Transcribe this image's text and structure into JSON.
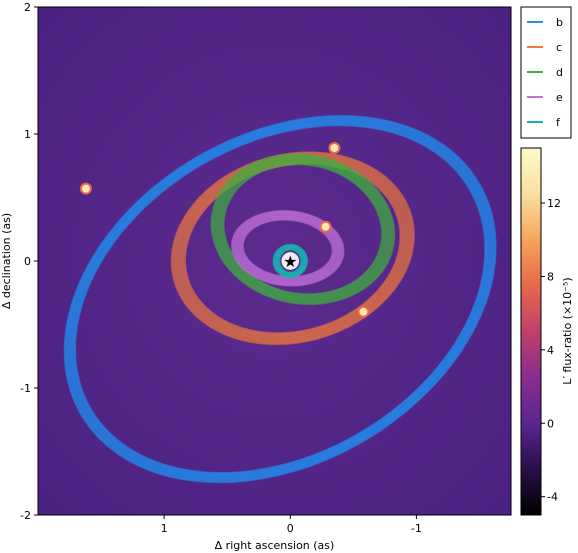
{
  "chart_data": {
    "type": "scatter",
    "xlabel": "Δ right ascension (as)",
    "ylabel": "Δ declination (as)",
    "xlim": [
      2.0,
      -1.75
    ],
    "ylim": [
      -2,
      2
    ],
    "xticks": [
      {
        "v": 1,
        "label": "1"
      },
      {
        "v": 0,
        "label": "0"
      },
      {
        "v": -1,
        "label": "-1"
      }
    ],
    "yticks": [
      {
        "v": 2,
        "label": "2"
      },
      {
        "v": 1,
        "label": "1"
      },
      {
        "v": 0,
        "label": "0"
      },
      {
        "v": -1,
        "label": "-1"
      },
      {
        "v": -2,
        "label": "-2"
      }
    ],
    "legend_position": "top-right, outside plot",
    "legend": [
      {
        "name": "b",
        "color": "#1f8ff0"
      },
      {
        "name": "c",
        "color": "#f07a3a"
      },
      {
        "name": "d",
        "color": "#3fae3f"
      },
      {
        "name": "e",
        "color": "#c070d8"
      },
      {
        "name": "f",
        "color": "#17b3b0"
      }
    ],
    "orbits": [
      {
        "name": "b",
        "a": 1.78,
        "b": 1.27,
        "x0": 0.08,
        "y0": -0.3,
        "rot": -30,
        "width": 0.09,
        "color": "#1f8ff0"
      },
      {
        "name": "c",
        "a": 0.92,
        "b": 0.7,
        "x0": -0.02,
        "y0": 0.1,
        "rot": -15,
        "width": 0.11,
        "color": "#f07a3a"
      },
      {
        "name": "d",
        "a": 0.68,
        "b": 0.55,
        "x0": -0.1,
        "y0": 0.25,
        "rot": 10,
        "width": 0.1,
        "color": "#3fae3f"
      },
      {
        "name": "e",
        "a": 0.4,
        "b": 0.26,
        "x0": 0.02,
        "y0": 0.1,
        "rot": 5,
        "width": 0.09,
        "color": "#c070d8"
      },
      {
        "name": "f",
        "a": 0.11,
        "b": 0.11,
        "x0": 0.0,
        "y0": 0.0,
        "rot": 0,
        "width": 0.05,
        "color": "#17b3b0"
      }
    ],
    "planets": [
      {
        "name": "b",
        "x": 1.62,
        "y": 0.57
      },
      {
        "name": "c",
        "x": -0.58,
        "y": -0.4
      },
      {
        "name": "d",
        "x": -0.35,
        "y": 0.89
      },
      {
        "name": "e",
        "x": -0.28,
        "y": 0.27
      },
      {
        "name": "f",
        "x": 0.0,
        "y": 0.0
      }
    ],
    "colorbar": {
      "label": "L′ flux-ratio (×10⁻⁵)",
      "min": -5,
      "max": 15,
      "ticks": [
        {
          "v": -4,
          "label": "-4"
        },
        {
          "v": 0,
          "label": "0"
        },
        {
          "v": 4,
          "label": "4"
        },
        {
          "v": 8,
          "label": "8"
        },
        {
          "v": 12,
          "label": "12"
        }
      ],
      "colors": [
        "#000000",
        "#2a0f4a",
        "#5a2590",
        "#8a2d8e",
        "#c0406a",
        "#e8684a",
        "#f5a55a",
        "#fae0a0",
        "#fdfac8"
      ]
    }
  }
}
